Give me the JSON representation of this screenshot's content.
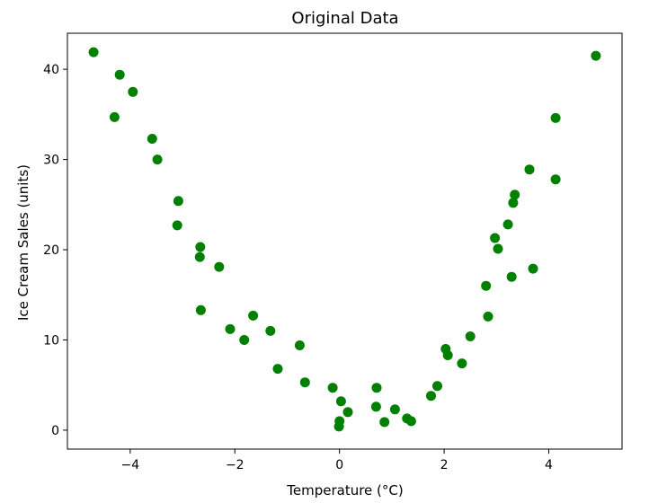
{
  "chart_data": {
    "type": "scatter",
    "title": "Original Data",
    "xlabel": "Temperature (°C)",
    "ylabel": "Ice Cream Sales (units)",
    "xlim": [
      -5.2,
      5.4
    ],
    "ylim": [
      -2.1,
      44
    ],
    "xticks": [
      -4,
      -2,
      0,
      2,
      4
    ],
    "yticks": [
      0,
      10,
      20,
      30,
      40
    ],
    "xtick_labels": [
      "−4",
      "−2",
      "0",
      "2",
      "4"
    ],
    "ytick_labels": [
      "0",
      "10",
      "20",
      "30",
      "40"
    ],
    "grid": false,
    "marker_color": "#008000",
    "points": [
      {
        "x": -4.7,
        "y": 41.9
      },
      {
        "x": -4.2,
        "y": 39.4
      },
      {
        "x": -4.3,
        "y": 34.7
      },
      {
        "x": -3.95,
        "y": 37.5
      },
      {
        "x": -3.58,
        "y": 32.3
      },
      {
        "x": -3.48,
        "y": 30.0
      },
      {
        "x": -3.08,
        "y": 25.4
      },
      {
        "x": -3.1,
        "y": 22.7
      },
      {
        "x": -2.66,
        "y": 20.3
      },
      {
        "x": -2.67,
        "y": 19.2
      },
      {
        "x": -2.3,
        "y": 18.1
      },
      {
        "x": -2.65,
        "y": 13.3
      },
      {
        "x": -2.09,
        "y": 11.2
      },
      {
        "x": -1.82,
        "y": 10.0
      },
      {
        "x": -1.65,
        "y": 12.7
      },
      {
        "x": -1.32,
        "y": 11.0
      },
      {
        "x": -1.18,
        "y": 6.8
      },
      {
        "x": -0.76,
        "y": 9.4
      },
      {
        "x": -0.66,
        "y": 5.3
      },
      {
        "x": -0.13,
        "y": 4.7
      },
      {
        "x": 0.03,
        "y": 3.2
      },
      {
        "x": 0.0,
        "y": 1.0
      },
      {
        "x": -0.01,
        "y": 0.4
      },
      {
        "x": 0.16,
        "y": 2.0
      },
      {
        "x": 0.71,
        "y": 4.7
      },
      {
        "x": 0.7,
        "y": 2.6
      },
      {
        "x": 0.86,
        "y": 0.9
      },
      {
        "x": 1.06,
        "y": 2.3
      },
      {
        "x": 1.29,
        "y": 1.3
      },
      {
        "x": 1.37,
        "y": 1.0
      },
      {
        "x": 1.75,
        "y": 3.8
      },
      {
        "x": 1.87,
        "y": 4.9
      },
      {
        "x": 2.03,
        "y": 9.0
      },
      {
        "x": 2.07,
        "y": 8.3
      },
      {
        "x": 2.34,
        "y": 7.4
      },
      {
        "x": 2.5,
        "y": 10.4
      },
      {
        "x": 2.8,
        "y": 16.0
      },
      {
        "x": 2.84,
        "y": 12.6
      },
      {
        "x": 2.97,
        "y": 21.3
      },
      {
        "x": 3.03,
        "y": 20.1
      },
      {
        "x": 3.22,
        "y": 22.8
      },
      {
        "x": 3.29,
        "y": 17.0
      },
      {
        "x": 3.32,
        "y": 25.2
      },
      {
        "x": 3.35,
        "y": 26.1
      },
      {
        "x": 3.63,
        "y": 28.9
      },
      {
        "x": 3.7,
        "y": 17.9
      },
      {
        "x": 4.13,
        "y": 34.6
      },
      {
        "x": 4.13,
        "y": 27.8
      },
      {
        "x": 4.9,
        "y": 41.5
      }
    ]
  }
}
